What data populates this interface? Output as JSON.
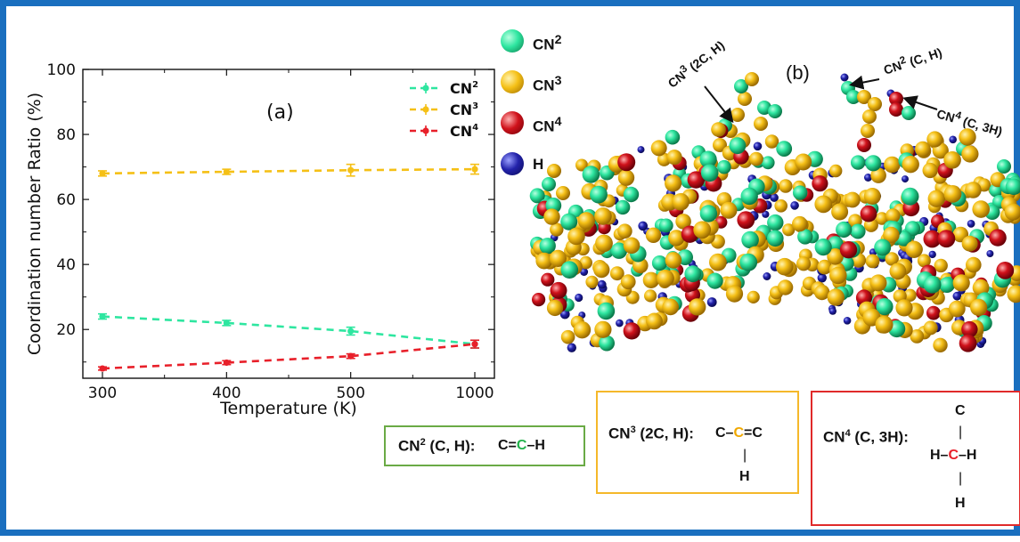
{
  "chart_data": {
    "type": "line",
    "panel_label": "(a)",
    "xlabel": "Temperature (K)",
    "ylabel": "Coordination number Ratio (%)",
    "ylim": [
      5,
      100
    ],
    "yticks": [
      20,
      40,
      60,
      80,
      100
    ],
    "categories": [
      "300",
      "400",
      "500",
      "1000"
    ],
    "legend_position": "top-right",
    "grid": false,
    "series": [
      {
        "name": "CN2",
        "color": "#2ee6a0",
        "values": [
          24.0,
          22.0,
          19.5,
          15.5
        ],
        "errors": [
          0.8,
          0.8,
          1.2,
          1.2
        ]
      },
      {
        "name": "CN3",
        "color": "#f5c016",
        "values": [
          68.0,
          68.5,
          69.0,
          69.3
        ],
        "errors": [
          0.8,
          0.8,
          1.8,
          1.5
        ]
      },
      {
        "name": "CN4",
        "color": "#e8202a",
        "values": [
          8.0,
          9.8,
          11.8,
          15.5
        ],
        "errors": [
          0.5,
          0.6,
          0.7,
          1.2
        ]
      }
    ]
  },
  "figure_b": {
    "panel_label": "(b)",
    "legend": [
      {
        "label": "CN2",
        "color": "#2ee6a0"
      },
      {
        "label": "CN3",
        "color": "#f5c016"
      },
      {
        "label": "CN4",
        "color": "#d0121b"
      },
      {
        "label": "H",
        "color": "#2222aa"
      }
    ],
    "annotations": {
      "cn3": "CN3 (2C, H)",
      "cn2": "CN2 (C, H)",
      "cn4": "CN4 (C, 3H)"
    }
  },
  "boxes": {
    "cn2": {
      "label": "CN2 (C, H):",
      "formula": "C=C–H",
      "border": "#6aaa45"
    },
    "cn3": {
      "label": "CN3 (2C, H):",
      "formula": "C–C=C",
      "sub_bond": "|",
      "sub_atom": "H",
      "border": "#f5b82a"
    },
    "cn4": {
      "label": "CN4 (C, 3H):",
      "top_atom": "C",
      "bond": "|",
      "middle": "H–C–H",
      "bottom_atom": "H",
      "border": "#e02a2a"
    }
  }
}
